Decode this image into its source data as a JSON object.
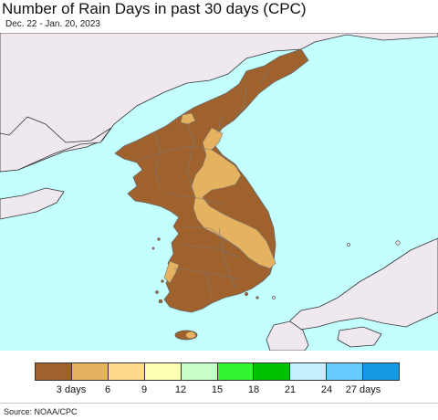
{
  "title": "Number of Rain Days in past 30 days (CPC)",
  "subtitle": "Dec. 22 - Jan. 20, 2023",
  "source": "Source: NOAA/CPC",
  "colors": {
    "sea": "#c4ffff",
    "land_outside": "#efe9ef",
    "border": "#777777"
  },
  "legend": {
    "colors": [
      "#a0622d",
      "#e5b25f",
      "#ffd98c",
      "#ffffb3",
      "#c8ffc8",
      "#33f533",
      "#00c200",
      "#c4f0ff",
      "#66ccff",
      "#1599e0"
    ],
    "ticks": [
      {
        "label": "3 days",
        "at": 1
      },
      {
        "label": "6",
        "at": 2
      },
      {
        "label": "9",
        "at": 3
      },
      {
        "label": "12",
        "at": 4
      },
      {
        "label": "15",
        "at": 5
      },
      {
        "label": "18",
        "at": 6
      },
      {
        "label": "21",
        "at": 7
      },
      {
        "label": "24",
        "at": 8
      },
      {
        "label": "27 days",
        "at": 9
      }
    ]
  }
}
